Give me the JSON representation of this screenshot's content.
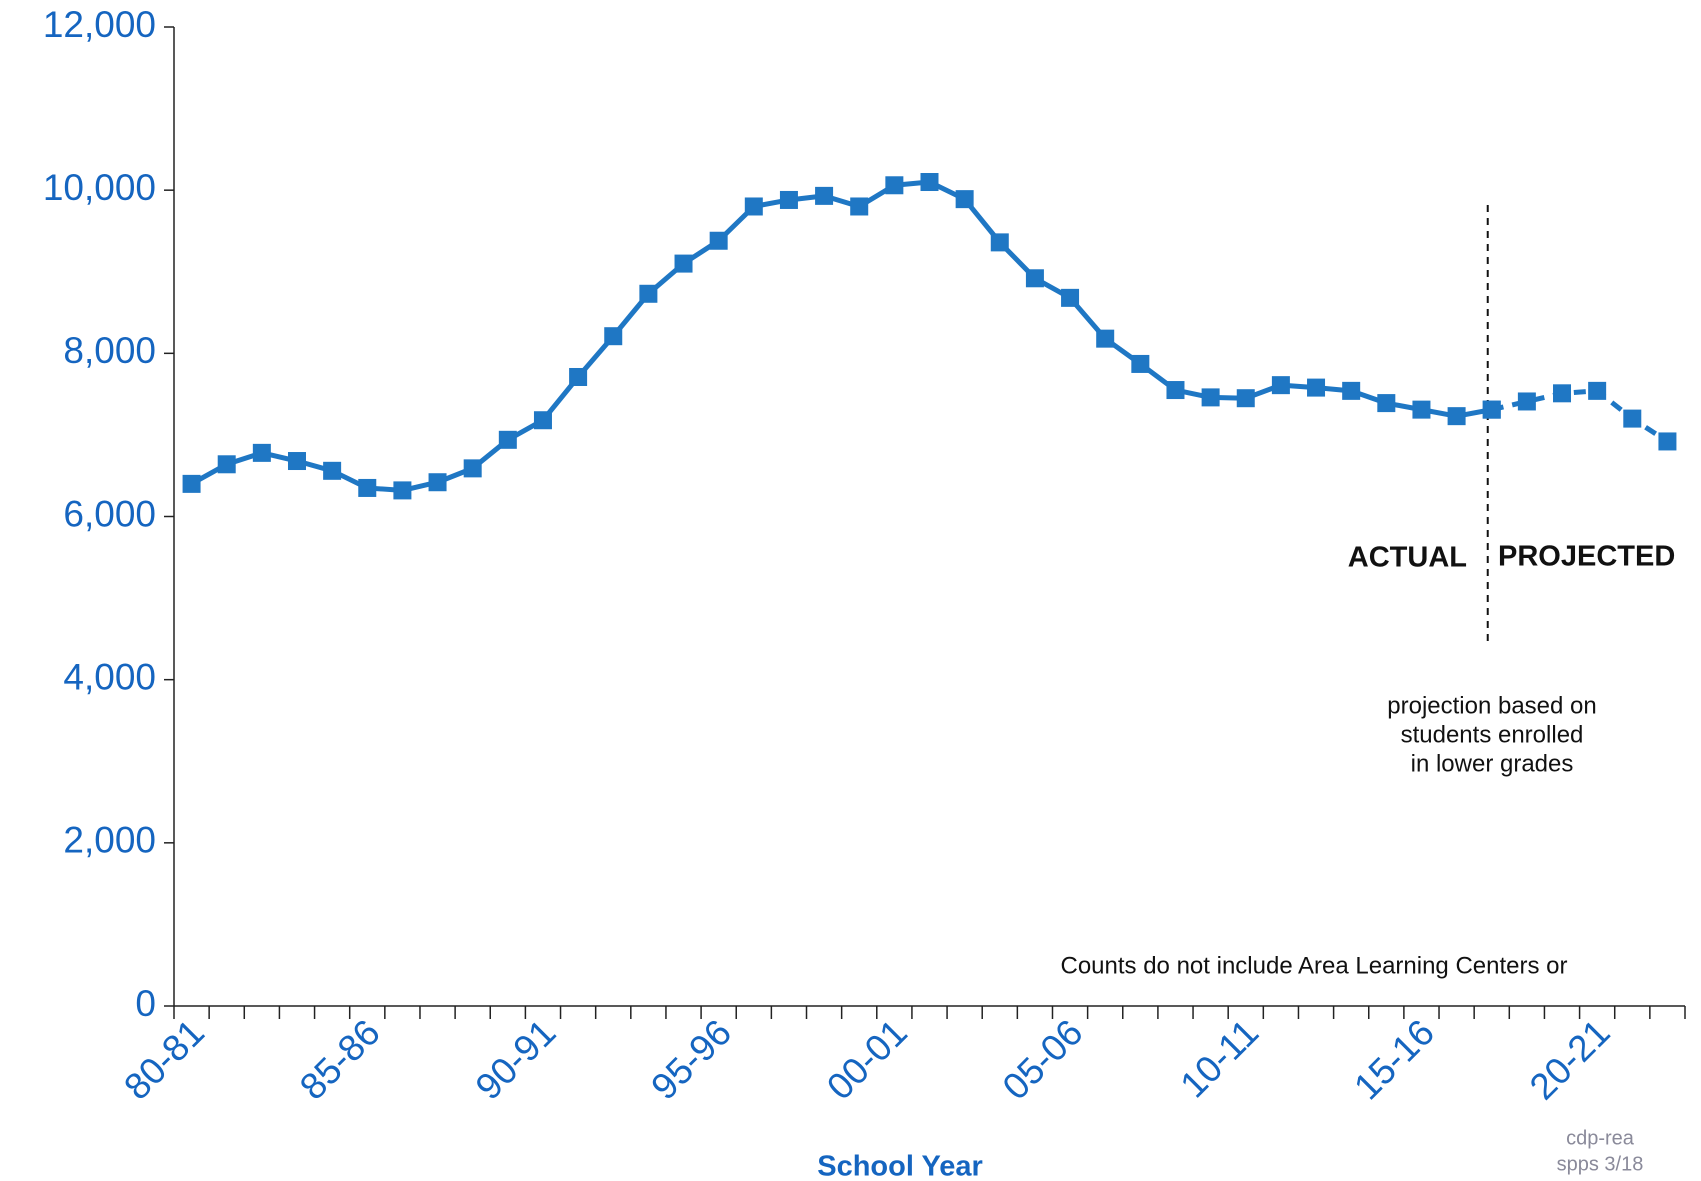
{
  "chart_data": {
    "type": "line",
    "x_label": "School Year",
    "categories": [
      "80-81",
      null,
      null,
      null,
      null,
      "85-86",
      null,
      null,
      null,
      null,
      "90-91",
      null,
      null,
      null,
      null,
      "95-96",
      null,
      null,
      null,
      null,
      "00-01",
      null,
      null,
      null,
      null,
      "05-06",
      null,
      null,
      null,
      null,
      "10-11",
      null,
      null,
      null,
      null,
      "15-16",
      null,
      null,
      null,
      null,
      "20-21",
      null,
      null
    ],
    "series": [
      {
        "name": "ACTUAL",
        "color": "#1f77c4",
        "dashed": false,
        "values": [
          6400,
          6640,
          6780,
          6680,
          6560,
          6350,
          6320,
          6420,
          6590,
          6940,
          7180,
          7710,
          8210,
          8730,
          9100,
          9380,
          9800,
          9880,
          9930,
          9800,
          10060,
          10100,
          9890,
          9360,
          8920,
          8680,
          8180,
          7870,
          7550,
          7460,
          7450,
          7610,
          7580,
          7540,
          7390,
          7310,
          7230,
          7310,
          null,
          null,
          null,
          null,
          null
        ]
      },
      {
        "name": "PROJECTED",
        "color": "#1f77c4",
        "dashed": true,
        "values": [
          null,
          null,
          null,
          null,
          null,
          null,
          null,
          null,
          null,
          null,
          null,
          null,
          null,
          null,
          null,
          null,
          null,
          null,
          null,
          null,
          null,
          null,
          null,
          null,
          null,
          null,
          null,
          null,
          null,
          null,
          null,
          null,
          null,
          null,
          null,
          null,
          null,
          7310,
          7410,
          7510,
          7540,
          7200,
          6920
        ]
      }
    ],
    "ylim": [
      0,
      12000
    ],
    "yticks": [
      0,
      {
        "value": 2000,
        "label": "2,000"
      },
      {
        "value": 4000,
        "label": "4,000"
      },
      {
        "value": 6000,
        "label": "6,000"
      },
      {
        "value": 8000,
        "label": "8,000"
      },
      {
        "value": 10000,
        "label": "10,000"
      },
      {
        "value": 12000,
        "label": "12,000"
      }
    ],
    "grid": false,
    "note": [
      "projection based on",
      "students enrolled",
      "in lower grades"
    ],
    "footnote": "Counts do not include Area Learning Centers or",
    "source": [
      "cdp-rea",
      "spps 3/18"
    ]
  }
}
